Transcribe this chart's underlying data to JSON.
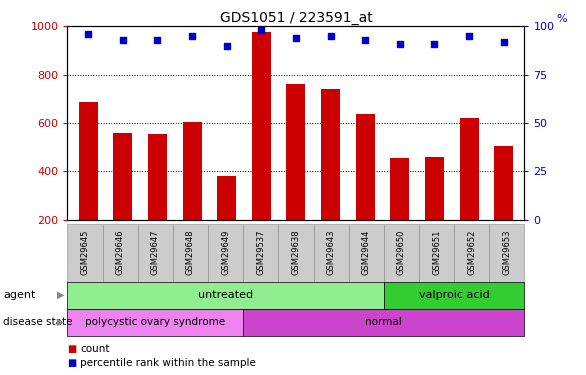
{
  "title": "GDS1051 / 223591_at",
  "samples": [
    "GSM29645",
    "GSM29646",
    "GSM29647",
    "GSM29648",
    "GSM29649",
    "GSM29537",
    "GSM29638",
    "GSM29643",
    "GSM29644",
    "GSM29650",
    "GSM29651",
    "GSM29652",
    "GSM29653"
  ],
  "count_values": [
    685,
    560,
    553,
    605,
    380,
    975,
    763,
    742,
    637,
    455,
    458,
    622,
    505
  ],
  "percentile_values": [
    96,
    93,
    93,
    95,
    90,
    98,
    94,
    95,
    93,
    91,
    91,
    95,
    92
  ],
  "ylim_left": [
    200,
    1000
  ],
  "ylim_right": [
    0,
    100
  ],
  "yticks_left": [
    200,
    400,
    600,
    800,
    1000
  ],
  "yticks_right": [
    0,
    25,
    50,
    75,
    100
  ],
  "bar_color": "#cc0000",
  "dot_color": "#0000cc",
  "agent_groups": [
    {
      "label": "untreated",
      "start": 0,
      "end": 9,
      "color": "#90ee90"
    },
    {
      "label": "valproic acid",
      "start": 9,
      "end": 13,
      "color": "#33cc33"
    }
  ],
  "disease_groups": [
    {
      "label": "polycystic ovary syndrome",
      "start": 0,
      "end": 5,
      "color": "#ee82ee"
    },
    {
      "label": "normal",
      "start": 5,
      "end": 13,
      "color": "#cc44cc"
    }
  ],
  "ylabel_left_color": "#cc0000",
  "ylabel_right_color": "#0000cc",
  "bg_color": "#ffffff",
  "dotted_grid_values": [
    400,
    600,
    800
  ],
  "col_box_color": "#cccccc",
  "col_box_edge": "#888888"
}
